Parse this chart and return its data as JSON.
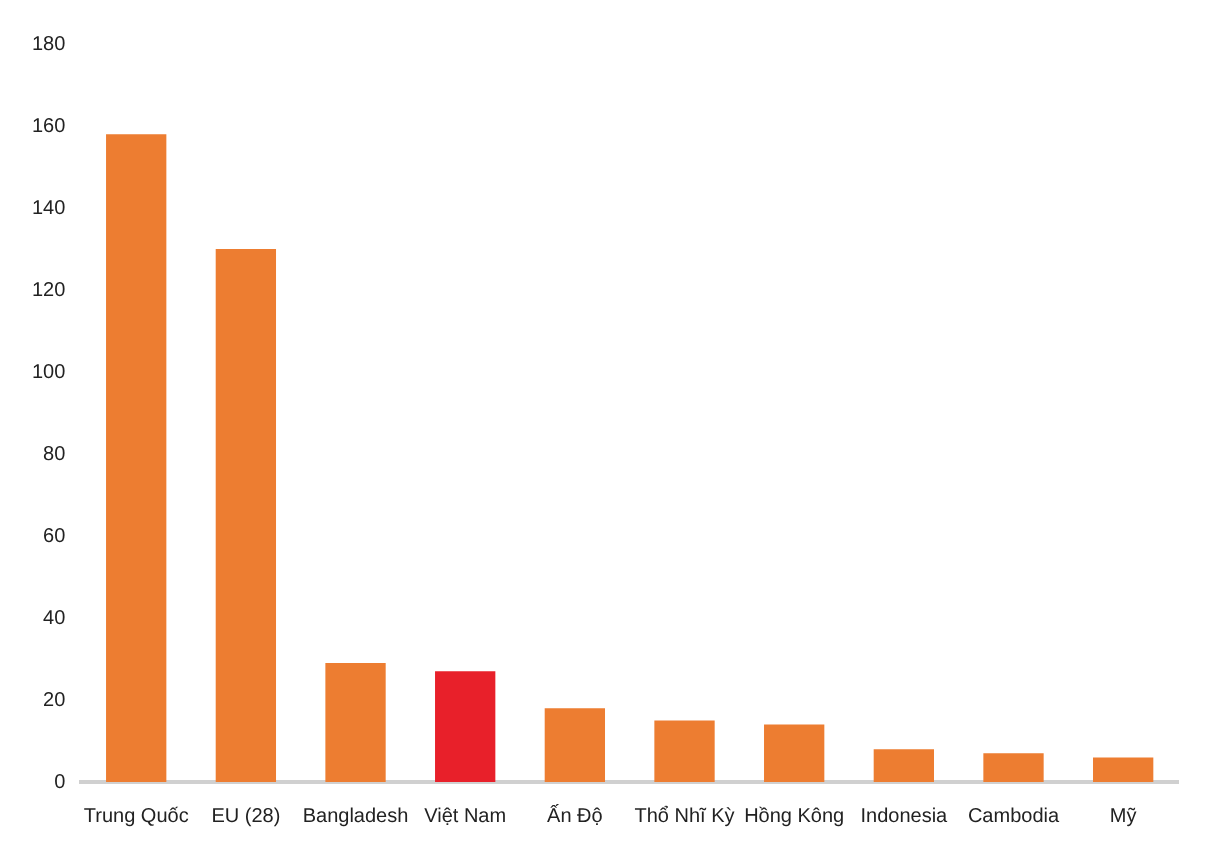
{
  "chart_data": {
    "type": "bar",
    "categories": [
      "Trung Quốc",
      "EU (28)",
      "Bangladesh",
      "Việt Nam",
      "Ấn Độ",
      "Thổ Nhĩ Kỳ",
      "Hồng Kông",
      "Indonesia",
      "Cambodia",
      "Mỹ"
    ],
    "values": [
      158,
      130,
      29,
      27,
      18,
      15,
      14,
      8,
      7,
      6
    ],
    "colors": [
      "#ed7d31",
      "#ed7d31",
      "#ed7d31",
      "#e8202a",
      "#ed7d31",
      "#ed7d31",
      "#ed7d31",
      "#ed7d31",
      "#ed7d31",
      "#ed7d31"
    ],
    "ylim": [
      0,
      180
    ],
    "yticks": [
      0,
      20,
      40,
      60,
      80,
      100,
      120,
      140,
      160,
      180
    ],
    "grid": false
  }
}
